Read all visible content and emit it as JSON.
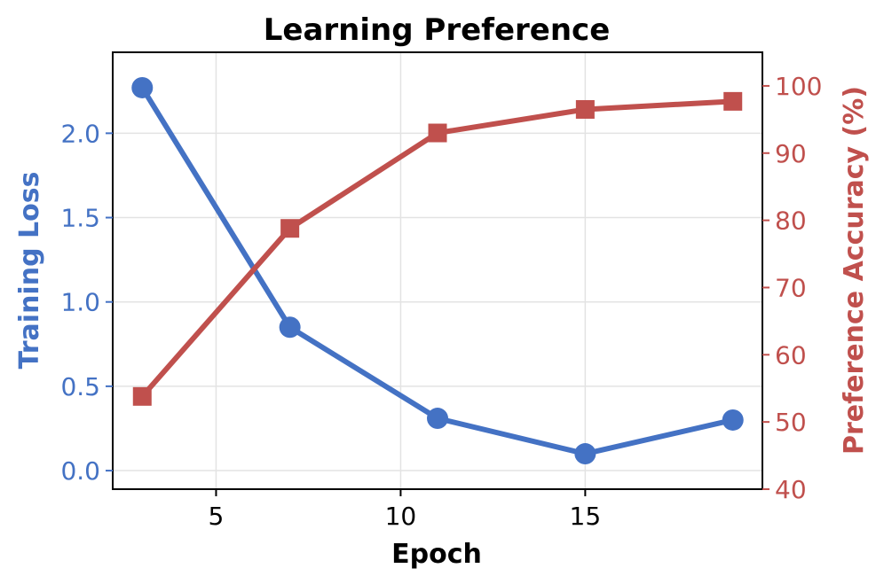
{
  "chart_data": {
    "type": "line",
    "title": "Learning Preference",
    "xlabel": "Epoch",
    "ylabel_left": "Training Loss",
    "ylabel_right": "Preference Accuracy (%)",
    "x": [
      3,
      7,
      11,
      15,
      19
    ],
    "xlim": [
      2.2,
      19.8
    ],
    "xticks": [
      5,
      10,
      15
    ],
    "ylim_left": [
      -0.11,
      2.48
    ],
    "yticks_left": [
      "0.0",
      "0.5",
      "1.0",
      "1.5",
      "2.0"
    ],
    "ylim_right": [
      40,
      105
    ],
    "yticks_right": [
      "40",
      "50",
      "60",
      "70",
      "80",
      "90",
      "100"
    ],
    "grid": true,
    "series": [
      {
        "name": "Training Loss",
        "axis": "left",
        "marker": "circle",
        "color": "#4472c4",
        "values": [
          2.27,
          0.85,
          0.31,
          0.1,
          0.3
        ]
      },
      {
        "name": "Preference Accuracy (%)",
        "axis": "right",
        "marker": "square",
        "color": "#c0504d",
        "values": [
          53.8,
          78.8,
          93.0,
          96.5,
          97.7
        ]
      }
    ]
  }
}
